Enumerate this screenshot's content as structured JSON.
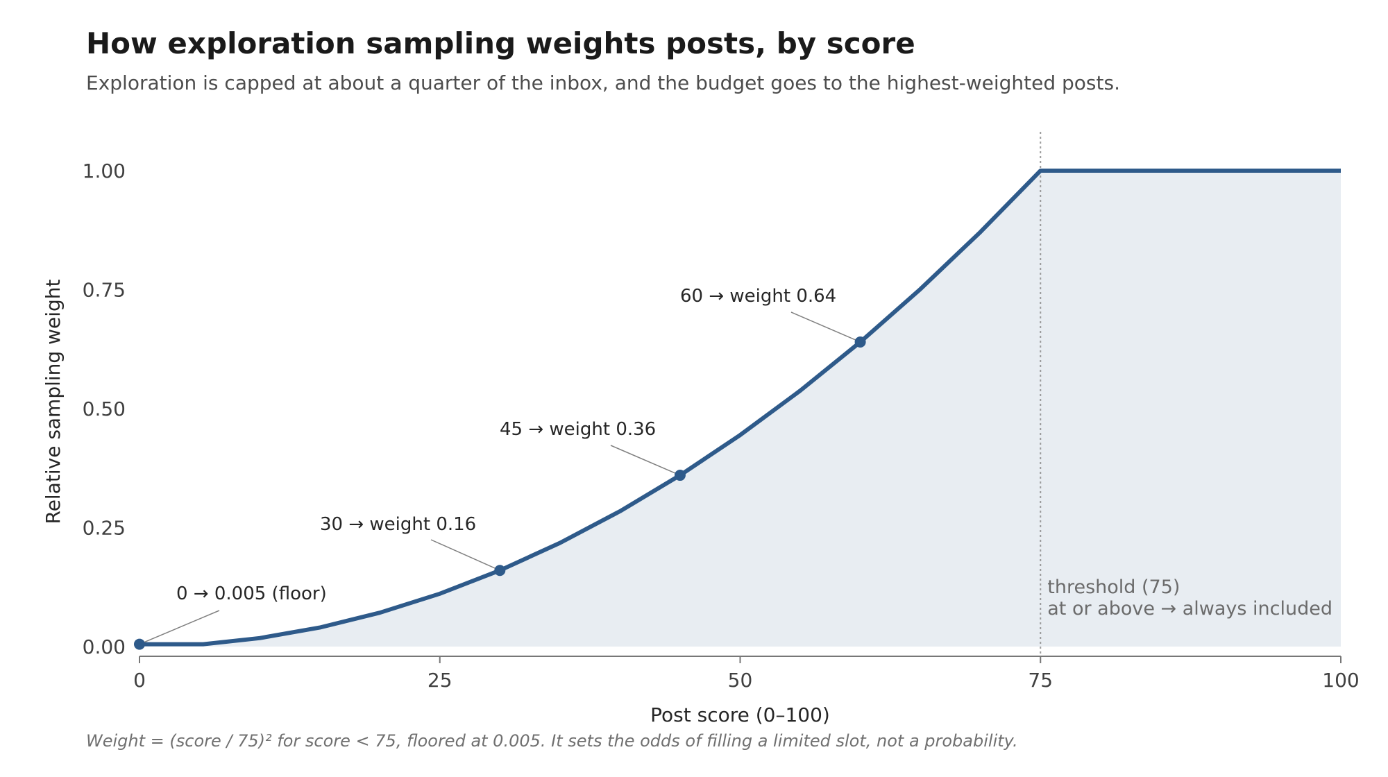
{
  "header": {
    "title": "How exploration sampling weights posts, by score",
    "subtitle": "Exploration is capped at about a quarter of the inbox, and the budget goes to the highest-weighted posts."
  },
  "footnote": "Weight = (score / 75)² for score < 75, floored at 0.005. It sets the odds of filling a limited slot, not a probability.",
  "colors": {
    "line": "#2e5a8a",
    "fill": "#e8edf2",
    "axis": "#777777",
    "threshold": "#9a9a9a"
  },
  "chart_data": {
    "type": "area",
    "xlabel": "Post score (0–100)",
    "ylabel": "Relative sampling weight",
    "xlim": [
      0,
      100
    ],
    "ylim": [
      0,
      1.0
    ],
    "x_ticks": [
      0,
      25,
      50,
      75,
      100
    ],
    "x_tick_labels": [
      "0",
      "25",
      "50",
      "75",
      "100"
    ],
    "y_ticks": [
      0,
      0.25,
      0.5,
      0.75,
      1.0
    ],
    "y_tick_labels": [
      "0.00",
      "0.25",
      "0.50",
      "0.75",
      "1.00"
    ],
    "grid": false,
    "series": [
      {
        "x": [
          0,
          5.3,
          10,
          15,
          20,
          25,
          30,
          35,
          40,
          45,
          50,
          55,
          60,
          65,
          70,
          75,
          75,
          80,
          90,
          100
        ],
        "y": [
          0.005,
          0.005,
          0.0178,
          0.04,
          0.0711,
          0.1111,
          0.16,
          0.2178,
          0.2844,
          0.36,
          0.4444,
          0.5378,
          0.64,
          0.7511,
          0.8711,
          1.0,
          1.0,
          1.0,
          1.0,
          1.0
        ]
      }
    ],
    "threshold": {
      "x": 75,
      "label_line1": "threshold (75)",
      "label_line2": "at or above → always included"
    },
    "annotations": [
      {
        "x": 0,
        "y": 0.005,
        "label": "0 → 0.005 (floor)"
      },
      {
        "x": 30,
        "y": 0.16,
        "label": "30 → weight 0.16"
      },
      {
        "x": 45,
        "y": 0.36,
        "label": "45 → weight 0.36"
      },
      {
        "x": 60,
        "y": 0.64,
        "label": "60 → weight 0.64"
      }
    ]
  }
}
